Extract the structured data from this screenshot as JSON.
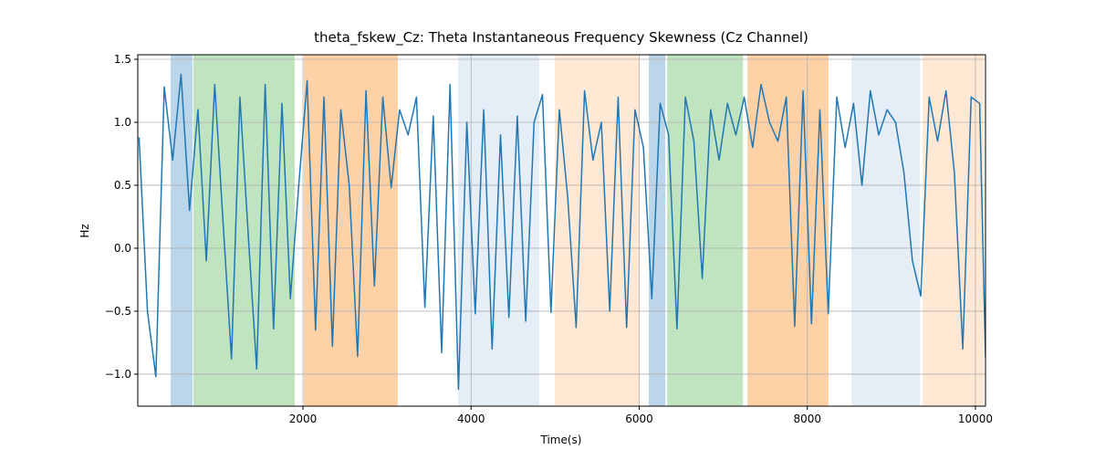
{
  "chart_data": {
    "type": "line",
    "title": "theta_fskew_Cz: Theta Instantaneous Frequency Skewness (Cz Channel)",
    "x_label": "Time(s)",
    "y_label": "Hz",
    "xlim": [
      35,
      10120
    ],
    "ylim": [
      -1.254,
      1.536
    ],
    "xticks": [
      2000,
      4000,
      6000,
      8000,
      10000
    ],
    "yticks": [
      {
        "value": -1.0,
        "label": "−1.0"
      },
      {
        "value": -0.5,
        "label": "−0.5"
      },
      {
        "value": 0.0,
        "label": "0.0"
      },
      0.5,
      {
        "value": 1.0,
        "label": "1.0"
      },
      1.5
    ],
    "grid": true,
    "regions": [
      {
        "start": 426,
        "end": 686,
        "color": "#bbd6ea"
      },
      {
        "start": 697,
        "end": 1902,
        "color": "#c0e4c0"
      },
      {
        "start": 2011,
        "end": 3129,
        "color": "#ffd1a6"
      },
      {
        "start": 3846,
        "end": 4812,
        "color": "#e5edf7"
      },
      {
        "start": 4997,
        "end": 6007,
        "color": "#ffe9d4"
      },
      {
        "start": 6115,
        "end": 6311,
        "color": "#bbd6ea"
      },
      {
        "start": 6333,
        "end": 7234,
        "color": "#c0e4c0"
      },
      {
        "start": 7288,
        "end": 8254,
        "color": "#ffd1a6"
      },
      {
        "start": 8526,
        "end": 9340,
        "color": "#e5edf7"
      },
      {
        "start": 9373,
        "end": 10100,
        "color": "#ffe9d4"
      }
    ],
    "x": [
      50,
      150,
      250,
      350,
      450,
      550,
      650,
      750,
      850,
      950,
      1050,
      1150,
      1250,
      1350,
      1450,
      1550,
      1650,
      1750,
      1850,
      1950,
      2050,
      2150,
      2250,
      2350,
      2450,
      2550,
      2650,
      2750,
      2850,
      2950,
      3050,
      3150,
      3250,
      3350,
      3450,
      3550,
      3650,
      3750,
      3850,
      3950,
      4050,
      4150,
      4250,
      4350,
      4450,
      4550,
      4650,
      4750,
      4850,
      4950,
      5050,
      5150,
      5250,
      5350,
      5450,
      5550,
      5650,
      5750,
      5850,
      5950,
      6050,
      6150,
      6250,
      6350,
      6450,
      6550,
      6650,
      6750,
      6850,
      6950,
      7050,
      7150,
      7250,
      7350,
      7450,
      7550,
      7650,
      7750,
      7850,
      7950,
      8050,
      8150,
      8250,
      8350,
      8450,
      8550,
      8650,
      8750,
      8850,
      8950,
      9050,
      9150,
      9250,
      9350,
      9450,
      9550,
      9650,
      9750,
      9850,
      9950,
      10050,
      10120
    ],
    "series": [
      {
        "color": "#1f77b4",
        "values": [
          0.88,
          -0.5,
          -1.02,
          1.28,
          0.7,
          1.38,
          0.3,
          1.1,
          -0.1,
          1.3,
          0.2,
          -0.88,
          1.2,
          0.1,
          -0.96,
          1.3,
          -0.64,
          1.15,
          -0.4,
          0.5,
          1.33,
          -0.65,
          1.2,
          -0.78,
          1.1,
          0.5,
          -0.86,
          1.25,
          -0.3,
          1.2,
          0.48,
          1.1,
          0.9,
          1.2,
          -0.47,
          1.05,
          -0.83,
          1.3,
          -1.12,
          1.0,
          -0.52,
          1.1,
          -0.8,
          0.9,
          -0.55,
          1.05,
          -0.58,
          1.0,
          1.22,
          -0.51,
          1.1,
          0.4,
          -0.63,
          1.25,
          0.7,
          1.0,
          -0.5,
          1.2,
          -0.63,
          1.1,
          0.8,
          -0.4,
          1.15,
          0.9,
          -0.64,
          1.2,
          0.85,
          -0.24,
          1.1,
          0.7,
          1.15,
          0.9,
          1.2,
          0.8,
          1.3,
          1.0,
          0.85,
          1.2,
          -0.62,
          1.25,
          -0.6,
          1.1,
          -0.52,
          1.2,
          0.8,
          1.15,
          0.5,
          1.25,
          0.9,
          1.1,
          1.0,
          0.6,
          -0.1,
          -0.38,
          1.2,
          0.85,
          1.25,
          0.6,
          -0.8,
          1.2,
          1.15,
          -0.87
        ]
      }
    ]
  }
}
